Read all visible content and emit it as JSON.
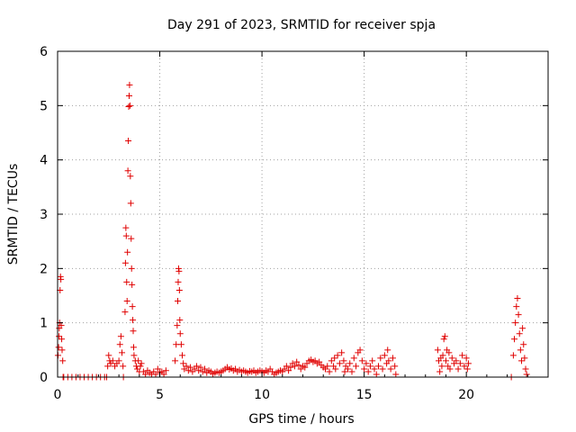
{
  "chart_data": {
    "type": "scatter",
    "title": "Day 291 of 2023, SRMTID for receiver spja",
    "xlabel": "GPS time / hours",
    "ylabel": "SRMTID / TECUs",
    "xlim": [
      0,
      24
    ],
    "ylim": [
      0,
      6
    ],
    "xticks": [
      0,
      5,
      10,
      15,
      20
    ],
    "yticks": [
      0,
      1,
      2,
      3,
      4,
      5,
      6
    ],
    "grid": true,
    "marker": "plus",
    "color": "#e00000",
    "series": [
      {
        "name": "SRMTID",
        "points": [
          [
            0.02,
            0.4
          ],
          [
            0.05,
            0.55
          ],
          [
            0.07,
            0.75
          ],
          [
            0.08,
            0.9
          ],
          [
            0.1,
            1.0
          ],
          [
            0.12,
            1.6
          ],
          [
            0.14,
            1.85
          ],
          [
            0.16,
            1.8
          ],
          [
            0.18,
            0.95
          ],
          [
            0.2,
            0.7
          ],
          [
            0.22,
            0.5
          ],
          [
            0.25,
            0.3
          ],
          [
            0.27,
            0.0
          ],
          [
            0.3,
            0.0
          ],
          [
            0.5,
            0.0
          ],
          [
            0.7,
            0.0
          ],
          [
            0.9,
            0.0
          ],
          [
            1.1,
            0.0
          ],
          [
            1.3,
            0.0
          ],
          [
            1.5,
            0.0
          ],
          [
            1.7,
            0.0
          ],
          [
            1.9,
            0.0
          ],
          [
            2.1,
            0.0
          ],
          [
            2.3,
            0.0
          ],
          [
            2.4,
            0.0
          ],
          [
            2.45,
            0.2
          ],
          [
            2.5,
            0.4
          ],
          [
            2.55,
            0.3
          ],
          [
            2.6,
            0.25
          ],
          [
            2.7,
            0.3
          ],
          [
            2.8,
            0.2
          ],
          [
            2.9,
            0.25
          ],
          [
            3.0,
            0.3
          ],
          [
            3.05,
            0.6
          ],
          [
            3.1,
            0.75
          ],
          [
            3.15,
            0.45
          ],
          [
            3.2,
            0.2
          ],
          [
            3.22,
            0.0
          ],
          [
            3.3,
            1.2
          ],
          [
            3.32,
            2.1
          ],
          [
            3.34,
            2.75
          ],
          [
            3.36,
            2.6
          ],
          [
            3.38,
            1.75
          ],
          [
            3.4,
            1.4
          ],
          [
            3.42,
            2.3
          ],
          [
            3.44,
            3.8
          ],
          [
            3.46,
            4.35
          ],
          [
            3.48,
            4.98
          ],
          [
            3.5,
            5.18
          ],
          [
            3.52,
            5.38
          ],
          [
            3.54,
            5.0
          ],
          [
            3.56,
            3.7
          ],
          [
            3.58,
            3.2
          ],
          [
            3.6,
            2.55
          ],
          [
            3.62,
            2.0
          ],
          [
            3.64,
            1.7
          ],
          [
            3.66,
            1.3
          ],
          [
            3.68,
            1.05
          ],
          [
            3.7,
            0.85
          ],
          [
            3.72,
            0.55
          ],
          [
            3.74,
            0.4
          ],
          [
            3.8,
            0.3
          ],
          [
            3.85,
            0.2
          ],
          [
            3.9,
            0.15
          ],
          [
            3.95,
            0.3
          ],
          [
            4.0,
            0.1
          ],
          [
            4.05,
            0.2
          ],
          [
            4.1,
            0.25
          ],
          [
            4.2,
            0.1
          ],
          [
            4.3,
            0.05
          ],
          [
            4.4,
            0.12
          ],
          [
            4.5,
            0.08
          ],
          [
            4.6,
            0.05
          ],
          [
            4.7,
            0.1
          ],
          [
            4.8,
            0.05
          ],
          [
            4.9,
            0.15
          ],
          [
            5.0,
            0.08
          ],
          [
            5.1,
            0.1
          ],
          [
            5.2,
            0.05
          ],
          [
            5.3,
            0.12
          ],
          [
            5.75,
            0.3
          ],
          [
            5.8,
            0.6
          ],
          [
            5.85,
            0.95
          ],
          [
            5.88,
            1.4
          ],
          [
            5.9,
            1.75
          ],
          [
            5.92,
            2.0
          ],
          [
            5.94,
            1.95
          ],
          [
            5.96,
            1.6
          ],
          [
            5.98,
            1.05
          ],
          [
            6.0,
            0.8
          ],
          [
            6.05,
            0.6
          ],
          [
            6.1,
            0.4
          ],
          [
            6.15,
            0.25
          ],
          [
            6.2,
            0.15
          ],
          [
            6.3,
            0.2
          ],
          [
            6.4,
            0.12
          ],
          [
            6.5,
            0.18
          ],
          [
            6.6,
            0.1
          ],
          [
            6.7,
            0.15
          ],
          [
            6.8,
            0.2
          ],
          [
            6.9,
            0.12
          ],
          [
            7.0,
            0.18
          ],
          [
            7.1,
            0.1
          ],
          [
            7.2,
            0.15
          ],
          [
            7.3,
            0.08
          ],
          [
            7.4,
            0.12
          ],
          [
            7.5,
            0.1
          ],
          [
            7.6,
            0.06
          ],
          [
            7.7,
            0.08
          ],
          [
            7.8,
            0.1
          ],
          [
            7.9,
            0.08
          ],
          [
            8.0,
            0.1
          ],
          [
            8.1,
            0.12
          ],
          [
            8.2,
            0.15
          ],
          [
            8.3,
            0.18
          ],
          [
            8.4,
            0.14
          ],
          [
            8.5,
            0.16
          ],
          [
            8.6,
            0.12
          ],
          [
            8.7,
            0.15
          ],
          [
            8.8,
            0.1
          ],
          [
            8.9,
            0.13
          ],
          [
            9.0,
            0.1
          ],
          [
            9.1,
            0.12
          ],
          [
            9.2,
            0.1
          ],
          [
            9.3,
            0.08
          ],
          [
            9.4,
            0.11
          ],
          [
            9.5,
            0.1
          ],
          [
            9.6,
            0.12
          ],
          [
            9.7,
            0.08
          ],
          [
            9.8,
            0.1
          ],
          [
            9.9,
            0.12
          ],
          [
            10.0,
            0.1
          ],
          [
            10.1,
            0.08
          ],
          [
            10.2,
            0.12
          ],
          [
            10.3,
            0.1
          ],
          [
            10.4,
            0.15
          ],
          [
            10.5,
            0.1
          ],
          [
            10.6,
            0.05
          ],
          [
            10.7,
            0.08
          ],
          [
            10.8,
            0.1
          ],
          [
            10.9,
            0.12
          ],
          [
            11.0,
            0.1
          ],
          [
            11.1,
            0.15
          ],
          [
            11.2,
            0.2
          ],
          [
            11.3,
            0.12
          ],
          [
            11.4,
            0.18
          ],
          [
            11.5,
            0.25
          ],
          [
            11.6,
            0.2
          ],
          [
            11.7,
            0.28
          ],
          [
            11.8,
            0.22
          ],
          [
            11.9,
            0.15
          ],
          [
            12.0,
            0.2
          ],
          [
            12.1,
            0.18
          ],
          [
            12.2,
            0.25
          ],
          [
            12.3,
            0.3
          ],
          [
            12.4,
            0.32
          ],
          [
            12.5,
            0.28
          ],
          [
            12.6,
            0.3
          ],
          [
            12.7,
            0.25
          ],
          [
            12.8,
            0.28
          ],
          [
            12.9,
            0.22
          ],
          [
            13.0,
            0.18
          ],
          [
            13.1,
            0.15
          ],
          [
            13.2,
            0.2
          ],
          [
            13.3,
            0.1
          ],
          [
            13.4,
            0.3
          ],
          [
            13.5,
            0.2
          ],
          [
            13.55,
            0.35
          ],
          [
            13.6,
            0.15
          ],
          [
            13.7,
            0.4
          ],
          [
            13.8,
            0.25
          ],
          [
            13.9,
            0.45
          ],
          [
            14.0,
            0.3
          ],
          [
            14.05,
            0.1
          ],
          [
            14.1,
            0.2
          ],
          [
            14.2,
            0.15
          ],
          [
            14.3,
            0.25
          ],
          [
            14.4,
            0.1
          ],
          [
            14.5,
            0.35
          ],
          [
            14.6,
            0.2
          ],
          [
            14.7,
            0.45
          ],
          [
            14.8,
            0.5
          ],
          [
            14.9,
            0.3
          ],
          [
            15.0,
            0.15
          ],
          [
            15.1,
            0.25
          ],
          [
            15.2,
            0.1
          ],
          [
            15.3,
            0.2
          ],
          [
            15.4,
            0.3
          ],
          [
            15.5,
            0.15
          ],
          [
            15.6,
            0.05
          ],
          [
            15.7,
            0.2
          ],
          [
            15.8,
            0.35
          ],
          [
            15.9,
            0.15
          ],
          [
            16.0,
            0.4
          ],
          [
            16.1,
            0.25
          ],
          [
            16.15,
            0.5
          ],
          [
            16.2,
            0.3
          ],
          [
            16.3,
            0.15
          ],
          [
            16.4,
            0.35
          ],
          [
            16.5,
            0.2
          ],
          [
            16.55,
            0.05
          ],
          [
            18.6,
            0.5
          ],
          [
            18.65,
            0.3
          ],
          [
            18.7,
            0.1
          ],
          [
            18.75,
            0.35
          ],
          [
            18.8,
            0.2
          ],
          [
            18.85,
            0.4
          ],
          [
            18.9,
            0.7
          ],
          [
            18.95,
            0.75
          ],
          [
            19.0,
            0.3
          ],
          [
            19.05,
            0.5
          ],
          [
            19.1,
            0.2
          ],
          [
            19.15,
            0.45
          ],
          [
            19.2,
            0.15
          ],
          [
            19.3,
            0.35
          ],
          [
            19.4,
            0.25
          ],
          [
            19.5,
            0.3
          ],
          [
            19.6,
            0.15
          ],
          [
            19.7,
            0.25
          ],
          [
            19.8,
            0.4
          ],
          [
            19.9,
            0.2
          ],
          [
            20.0,
            0.35
          ],
          [
            20.05,
            0.15
          ],
          [
            20.1,
            0.25
          ],
          [
            22.2,
            0.0
          ],
          [
            22.3,
            0.4
          ],
          [
            22.35,
            0.7
          ],
          [
            22.4,
            1.0
          ],
          [
            22.45,
            1.3
          ],
          [
            22.5,
            1.45
          ],
          [
            22.55,
            1.15
          ],
          [
            22.6,
            0.8
          ],
          [
            22.65,
            0.5
          ],
          [
            22.7,
            0.3
          ],
          [
            22.75,
            0.9
          ],
          [
            22.8,
            0.6
          ],
          [
            22.85,
            0.35
          ],
          [
            22.9,
            0.15
          ],
          [
            22.95,
            0.05
          ]
        ]
      }
    ]
  }
}
